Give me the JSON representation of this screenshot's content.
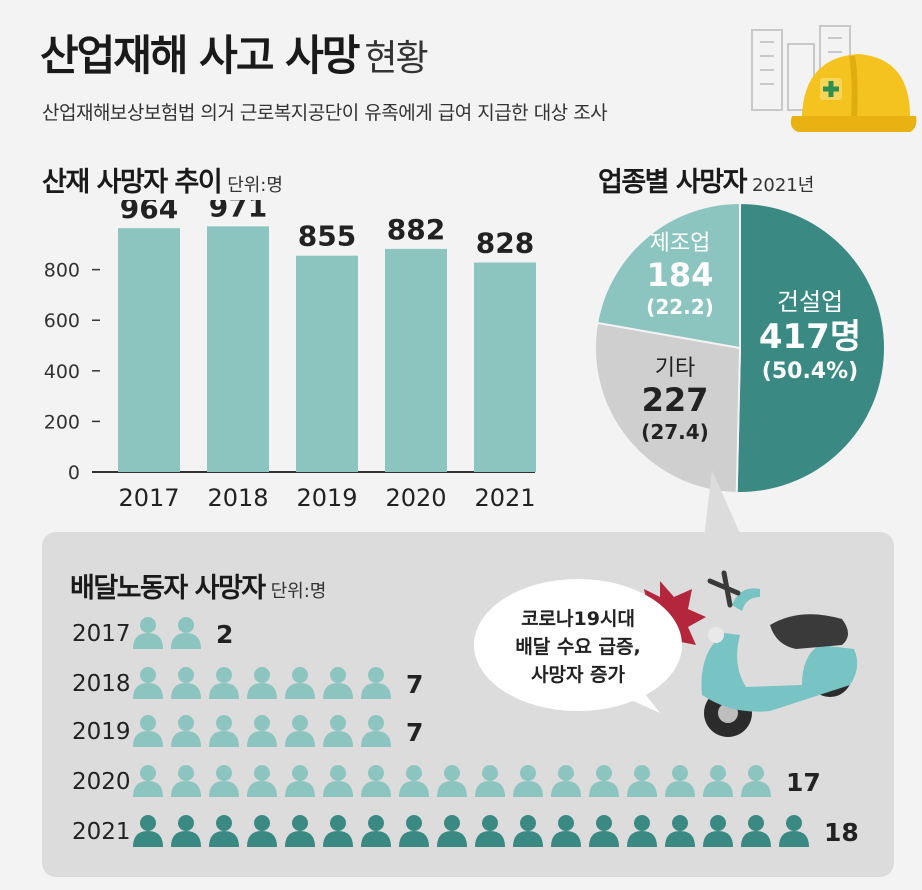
{
  "header": {
    "title": "산업재해 사고 사망",
    "title_suffix": "현황",
    "subtitle": "산업재해보상보험법 의거 근로복지공단이 유족에게 급여 지급한 대상 조사"
  },
  "bar_section": {
    "title": "산재 사망자 추이",
    "unit": "단위:명"
  },
  "pie_section": {
    "title": "업종별 사망자",
    "year": "2021년"
  },
  "delivery_section": {
    "title": "배달노동자 사망자",
    "unit": "단위:명"
  },
  "bubble": {
    "line1": "코로나19시대",
    "line2": "배달 수요 급증,",
    "line3": "사망자 증가"
  },
  "colors": {
    "bar": "#8cc5bf",
    "teal_dark": "#3a8a83",
    "teal_light": "#8cc5bf",
    "gray_slice": "#cfcfcf",
    "burst": "#b3263b"
  },
  "chart_data": [
    {
      "type": "bar",
      "categories": [
        "2017",
        "2018",
        "2019",
        "2020",
        "2021"
      ],
      "values": [
        964,
        971,
        855,
        882,
        828
      ],
      "title": "산재 사망자 추이",
      "ylim": [
        0,
        1000
      ],
      "yticks": [
        0,
        200,
        400,
        600,
        800
      ],
      "grid": false
    },
    {
      "type": "pie",
      "labels": [
        "건설업",
        "기타",
        "제조업"
      ],
      "values": [
        417,
        227,
        184
      ],
      "display_values": [
        "417명",
        "227",
        "184"
      ],
      "percents": [
        "(50.4%)",
        "(27.4)",
        "(22.2)"
      ]
    },
    {
      "type": "bar",
      "categories": [
        "2017",
        "2018",
        "2019",
        "2020",
        "2021"
      ],
      "values": [
        2,
        7,
        7,
        17,
        18
      ],
      "title": "배달노동자 사망자"
    }
  ]
}
